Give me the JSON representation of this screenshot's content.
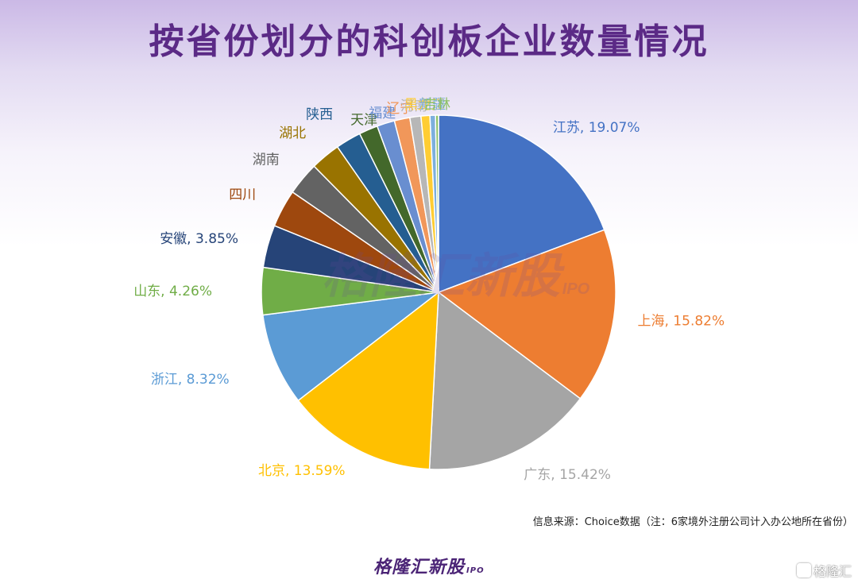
{
  "title": "按省份划分的科创板企业数量情况",
  "source": "信息来源：Choice数据（注：6家境外注册公司计入办公地所在省份）",
  "brand": {
    "main": "格隆汇新股",
    "sub": "IPO"
  },
  "watermark": {
    "center": "格隆汇新股",
    "center_sub": "IPO",
    "corner": "格隆汇"
  },
  "chart_data": {
    "type": "pie",
    "title": "按省份划分的科创板企业数量情况",
    "slices": [
      {
        "label": "江苏",
        "value": 19.07,
        "pct_label": "19.07%",
        "color": "#4472c4"
      },
      {
        "label": "上海",
        "value": 15.82,
        "pct_label": "15.82%",
        "color": "#ed7d31"
      },
      {
        "label": "广东",
        "value": 15.42,
        "pct_label": "15.42%",
        "color": "#a5a5a5"
      },
      {
        "label": "北京",
        "value": 13.59,
        "pct_label": "13.59%",
        "color": "#ffc000"
      },
      {
        "label": "浙江",
        "value": 8.32,
        "pct_label": "8.32%",
        "color": "#5b9bd5"
      },
      {
        "label": "山东",
        "value": 4.26,
        "pct_label": "4.26%",
        "color": "#70ad47"
      },
      {
        "label": "安徽",
        "value": 3.85,
        "pct_label": "3.85%",
        "color": "#264478"
      },
      {
        "label": "四川",
        "value": 3.4,
        "pct_label": "",
        "color": "#9e480e"
      },
      {
        "label": "湖南",
        "value": 3.0,
        "pct_label": "",
        "color": "#636363"
      },
      {
        "label": "湖北",
        "value": 2.7,
        "pct_label": "",
        "color": "#997300"
      },
      {
        "label": "陕西",
        "value": 2.3,
        "pct_label": "",
        "color": "#255e91"
      },
      {
        "label": "天津",
        "value": 1.7,
        "pct_label": "",
        "color": "#43682b"
      },
      {
        "label": "福建",
        "value": 1.6,
        "pct_label": "",
        "color": "#698ed0"
      },
      {
        "label": "辽宁",
        "value": 1.4,
        "pct_label": "",
        "color": "#f1975a"
      },
      {
        "label": "河南",
        "value": 1.0,
        "pct_label": "",
        "color": "#b7b7b7"
      },
      {
        "label": "黑龙江",
        "value": 0.8,
        "pct_label": "",
        "color": "#ffcd33"
      },
      {
        "label": "新疆",
        "value": 0.5,
        "pct_label": "",
        "color": "#7cafdd"
      },
      {
        "label": "吉林",
        "value": 0.27,
        "pct_label": "",
        "color": "#8cc168"
      }
    ]
  }
}
